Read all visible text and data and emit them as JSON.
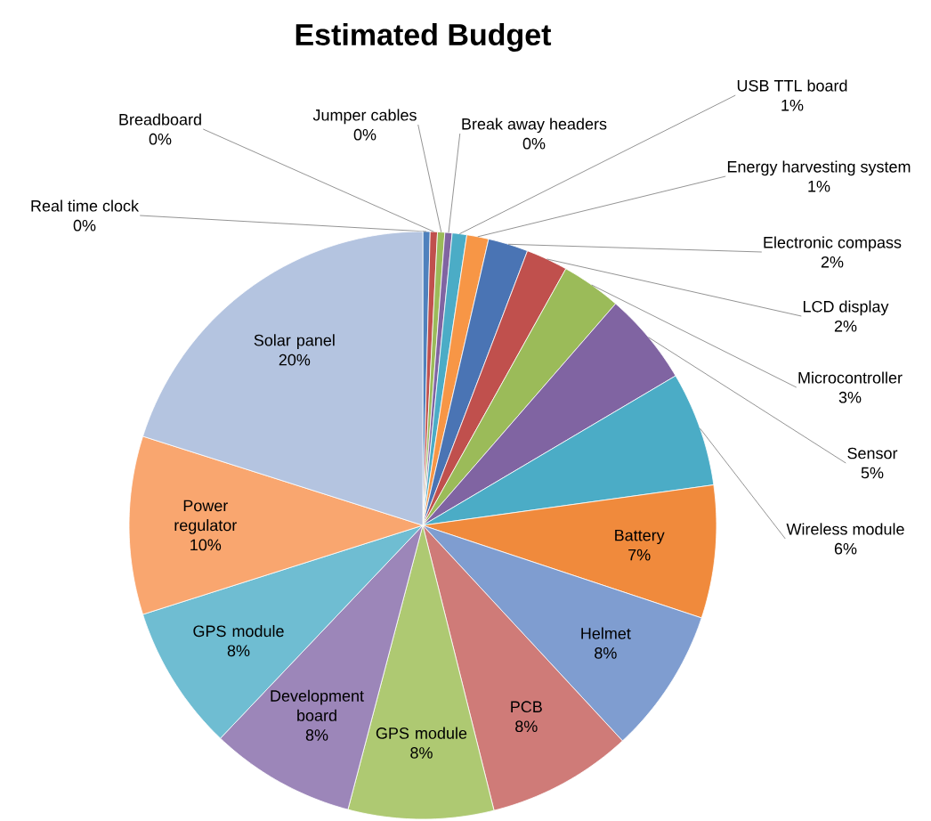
{
  "chart_data": {
    "type": "pie",
    "title": "Estimated Budget",
    "categories": [
      "Real time clock",
      "Breadboard",
      "Jumper cables",
      "Break away headers",
      "USB TTL board",
      "Energy harvesting system",
      "Electronic compass",
      "LCD display",
      "Microcontroller",
      "Sensor",
      "Wireless module",
      "Battery",
      "Helmet",
      "PCB",
      "GPS module",
      "Development board",
      "GPS module",
      "Power regulator",
      "Solar panel"
    ],
    "values": [
      0.4,
      0.4,
      0.4,
      0.4,
      0.8,
      1.2,
      2.2,
      2.3,
      3.3,
      5.1,
      6.3,
      7.3,
      8.0,
      8.0,
      8.0,
      8.0,
      8.0,
      9.8,
      20.1
    ],
    "value_labels": [
      "0%",
      "0%",
      "0%",
      "0%",
      "1%",
      "1%",
      "2%",
      "2%",
      "3%",
      "5%",
      "6%",
      "7%",
      "8%",
      "8%",
      "8%",
      "8%",
      "8%",
      "10%",
      "20%"
    ],
    "colors": [
      "#4f81bd",
      "#c0504d",
      "#9bbb59",
      "#8064a2",
      "#4bacc6",
      "#f79646",
      "#4a74b4",
      "#c0504d",
      "#9bbb59",
      "#8064a2",
      "#4bacc6",
      "#f08a3c",
      "#7f9dd0",
      "#cf7b78",
      "#aec972",
      "#9c86b9",
      "#6fbdd2",
      "#f9a66f",
      "#b4c4e0"
    ]
  }
}
